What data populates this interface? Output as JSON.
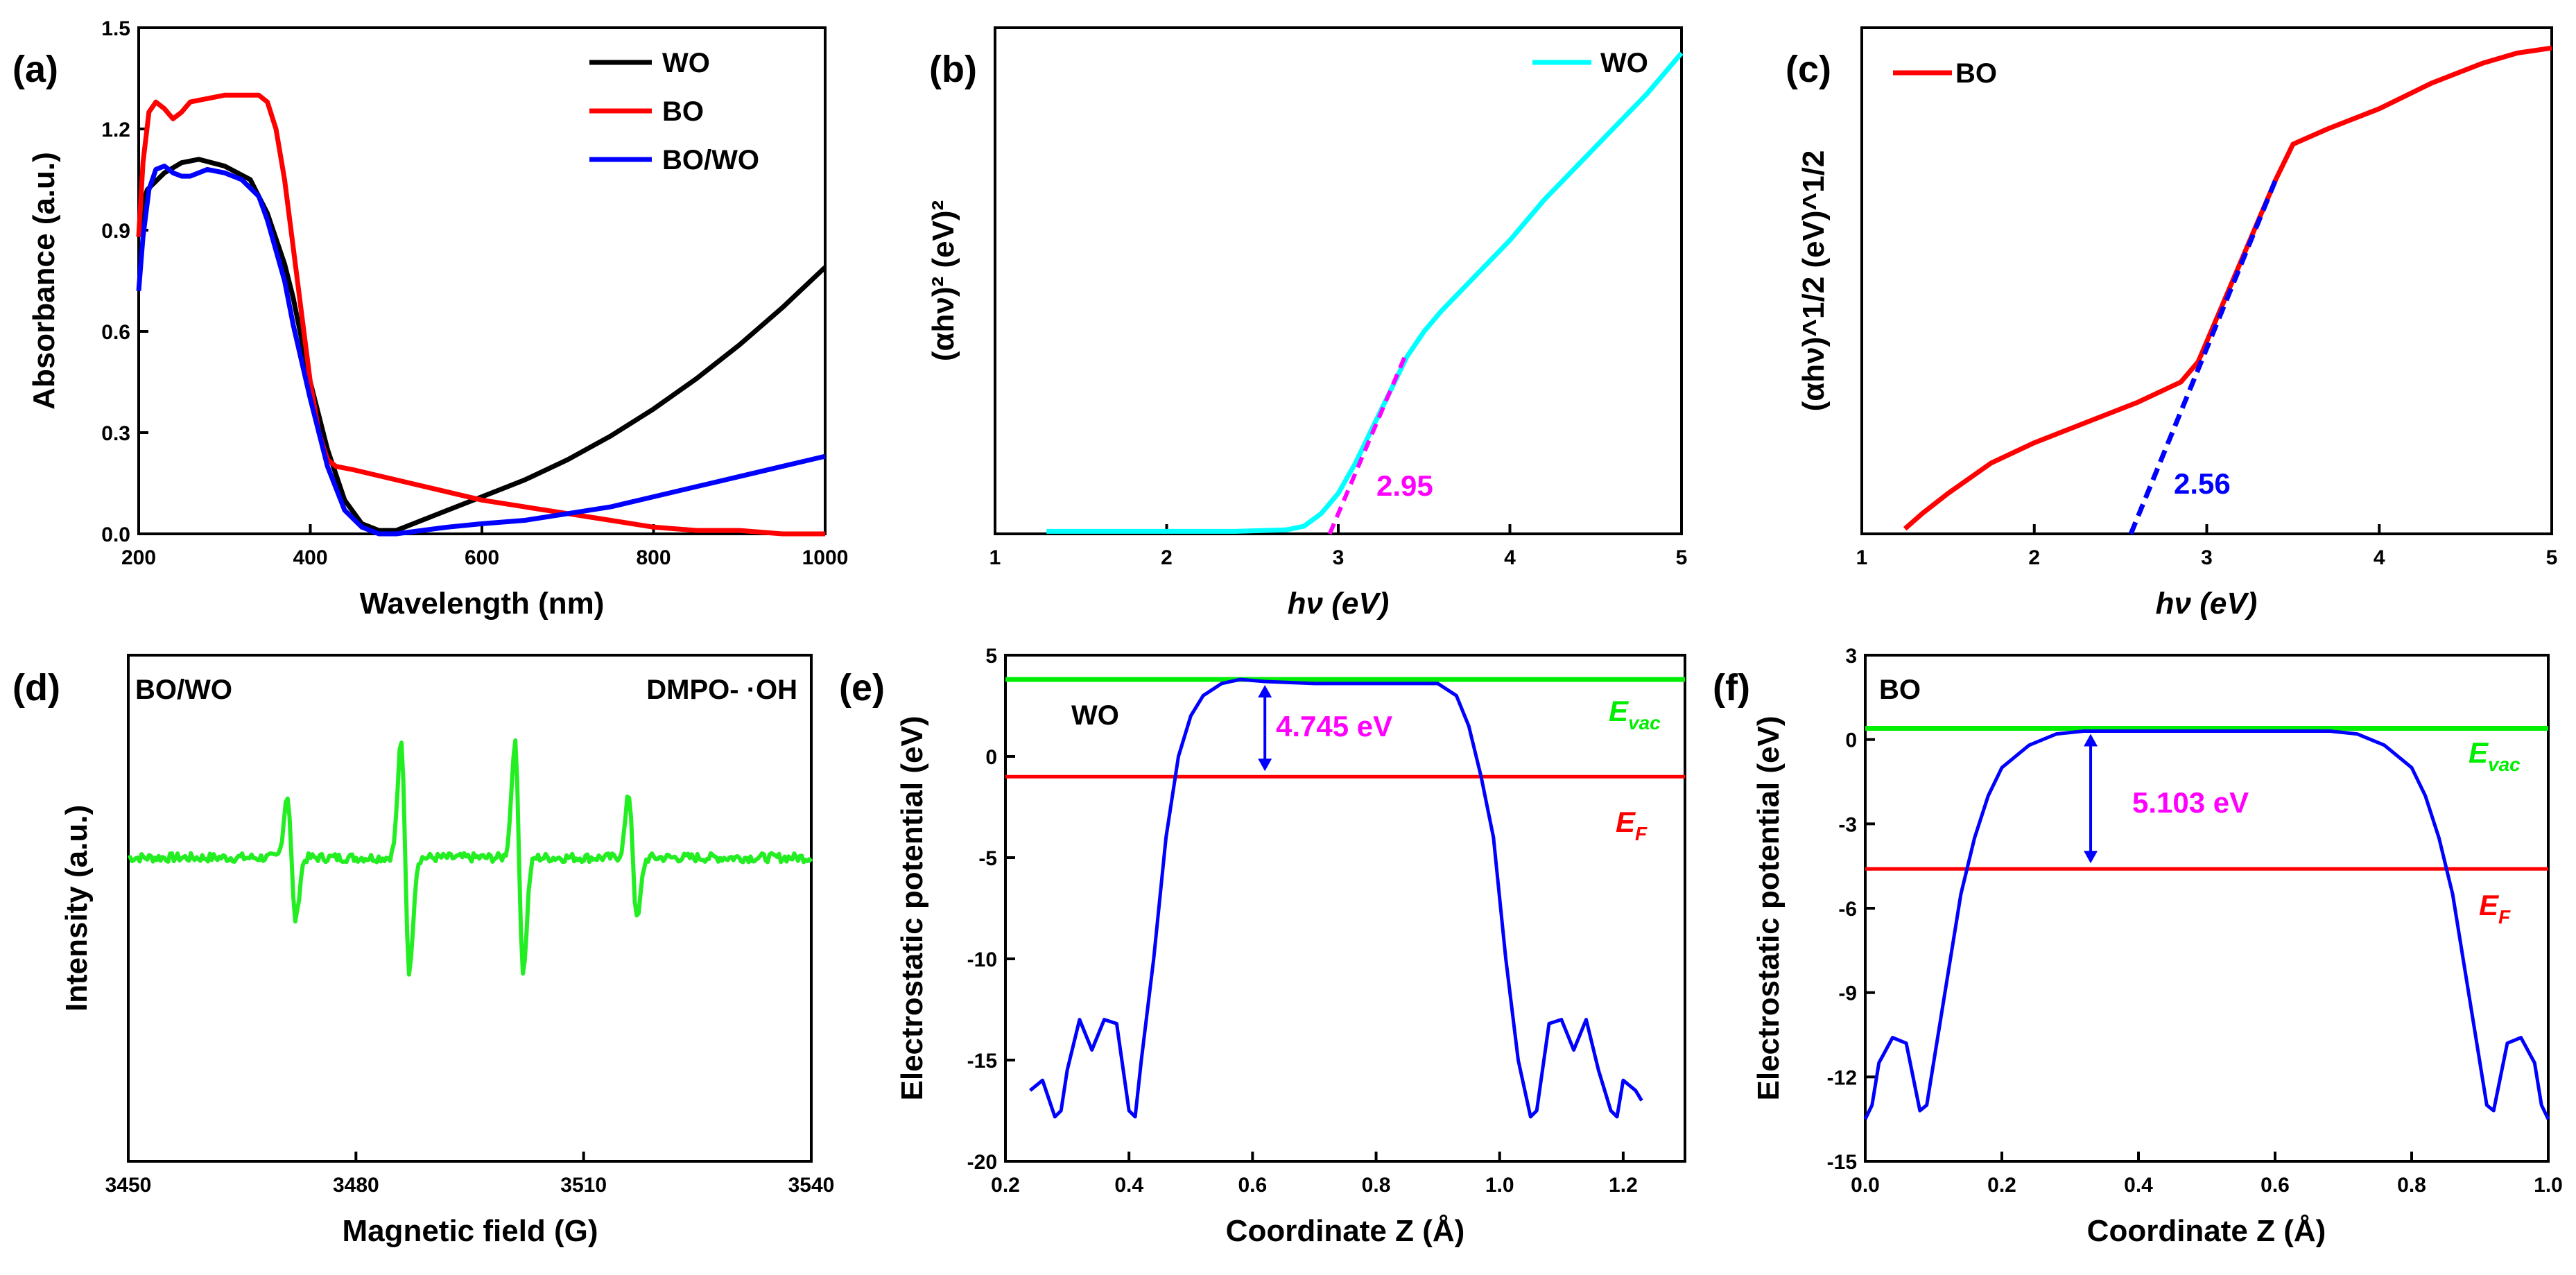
{
  "figure": "six-panel absorbance, Tauc, EPR and electrostatic potential figure",
  "chart_data": [
    {
      "panel": "(a)",
      "type": "line",
      "xlabel": "Wavelength (nm)",
      "ylabel": "Absorbance (a.u.)",
      "xlim": [
        200,
        1000
      ],
      "ylim": [
        0,
        1.5
      ],
      "xticks": [
        "200",
        "400",
        "600",
        "800",
        "1000"
      ],
      "yticks": [
        "0.0",
        "0.3",
        "0.6",
        "0.9",
        "1.2",
        "1.5"
      ],
      "legend": "top-right",
      "series": [
        {
          "name": "WO",
          "color": "#000000",
          "x": [
            200,
            205,
            210,
            230,
            250,
            270,
            300,
            330,
            350,
            370,
            380,
            400,
            420,
            440,
            460,
            480,
            500,
            530,
            560,
            600,
            650,
            700,
            750,
            800,
            850,
            900,
            950,
            1000
          ],
          "y": [
            0.88,
            0.98,
            1.02,
            1.07,
            1.1,
            1.11,
            1.09,
            1.05,
            0.95,
            0.8,
            0.7,
            0.45,
            0.25,
            0.1,
            0.03,
            0.01,
            0.01,
            0.04,
            0.07,
            0.11,
            0.16,
            0.22,
            0.29,
            0.37,
            0.46,
            0.56,
            0.67,
            0.79
          ]
        },
        {
          "name": "BO",
          "color": "#ff0000",
          "x": [
            200,
            205,
            212,
            220,
            230,
            240,
            250,
            260,
            280,
            300,
            320,
            340,
            350,
            360,
            370,
            380,
            390,
            400,
            410,
            420,
            430,
            450,
            500,
            550,
            600,
            650,
            700,
            750,
            800,
            850,
            900,
            950,
            1000
          ],
          "y": [
            0.88,
            1.1,
            1.25,
            1.28,
            1.26,
            1.23,
            1.25,
            1.28,
            1.29,
            1.3,
            1.3,
            1.3,
            1.28,
            1.2,
            1.05,
            0.85,
            0.65,
            0.45,
            0.3,
            0.22,
            0.2,
            0.19,
            0.16,
            0.13,
            0.1,
            0.08,
            0.06,
            0.04,
            0.02,
            0.01,
            0.01,
            0.0,
            0.0
          ]
        },
        {
          "name": "BO/WO",
          "color": "#0000ff",
          "x": [
            200,
            205,
            212,
            220,
            230,
            240,
            250,
            260,
            280,
            300,
            320,
            340,
            350,
            370,
            380,
            400,
            420,
            440,
            460,
            480,
            500,
            530,
            560,
            600,
            650,
            700,
            750,
            800,
            850,
            900,
            950,
            1000
          ],
          "y": [
            0.72,
            0.88,
            1.02,
            1.08,
            1.09,
            1.07,
            1.06,
            1.06,
            1.08,
            1.07,
            1.05,
            1.0,
            0.93,
            0.75,
            0.62,
            0.4,
            0.2,
            0.07,
            0.02,
            0.0,
            0.0,
            0.01,
            0.02,
            0.03,
            0.04,
            0.06,
            0.08,
            0.11,
            0.14,
            0.17,
            0.2,
            0.23
          ]
        }
      ]
    },
    {
      "panel": "(b)",
      "type": "line",
      "xlabel": "hν (eV)",
      "ylabel": "(αhν)² (eV)²",
      "xlim": [
        1,
        5
      ],
      "ylim": [
        0,
        1
      ],
      "xticks": [
        "1",
        "2",
        "3",
        "4",
        "5"
      ],
      "legend": "top-right",
      "series": [
        {
          "name": "WO",
          "color": "#00ffff",
          "x": [
            1.3,
            1.6,
            2.0,
            2.4,
            2.7,
            2.8,
            2.9,
            3.0,
            3.1,
            3.2,
            3.3,
            3.4,
            3.5,
            3.6,
            3.8,
            4.0,
            4.2,
            4.4,
            4.6,
            4.8,
            5.0
          ],
          "y": [
            0.005,
            0.005,
            0.005,
            0.005,
            0.008,
            0.015,
            0.04,
            0.08,
            0.14,
            0.21,
            0.28,
            0.35,
            0.4,
            0.44,
            0.51,
            0.58,
            0.66,
            0.73,
            0.8,
            0.87,
            0.95
          ]
        }
      ],
      "fit_line": {
        "x": [
          2.95,
          3.4
        ],
        "y": [
          0.0,
          0.36
        ],
        "color": "#ff00ff"
      },
      "annotation": "2.95"
    },
    {
      "panel": "(c)",
      "type": "line",
      "xlabel": "hν (eV)",
      "ylabel": "(αhν)^1/2 (eV)^1/2",
      "xlim": [
        1,
        5
      ],
      "ylim": [
        0,
        1
      ],
      "xticks": [
        "1",
        "2",
        "3",
        "4",
        "5"
      ],
      "legend": "top-left",
      "series": [
        {
          "name": "BO",
          "color": "#ff0000",
          "x": [
            1.25,
            1.35,
            1.5,
            1.75,
            2.0,
            2.3,
            2.6,
            2.85,
            2.95,
            3.1,
            3.25,
            3.4,
            3.5,
            3.7,
            4.0,
            4.3,
            4.6,
            4.8,
            5.0
          ],
          "y": [
            0.01,
            0.04,
            0.08,
            0.14,
            0.18,
            0.22,
            0.26,
            0.3,
            0.34,
            0.46,
            0.58,
            0.7,
            0.77,
            0.8,
            0.84,
            0.89,
            0.93,
            0.95,
            0.96
          ]
        }
      ],
      "fit_line": {
        "x": [
          2.56,
          3.4
        ],
        "y": [
          0.0,
          0.7
        ],
        "color": "#0000ff"
      },
      "annotation": "2.56"
    },
    {
      "panel": "(d)",
      "type": "line",
      "xlabel": "Magnetic field (G)",
      "ylabel": "Intensity (a.u.)",
      "xlim": [
        3450,
        3540
      ],
      "xticks": [
        "3450",
        "3480",
        "3510",
        "3540"
      ],
      "sample_label": "BO/WO",
      "series_label": "DMPO- ·OH",
      "series": [
        {
          "name": "DMPO- ·OH",
          "color": "#22ee22",
          "baseline": 0,
          "noise_amplitude": 0.06,
          "peaks": [
            {
              "center": 3471.5,
              "amplitude": 0.3
            },
            {
              "center": 3486.5,
              "amplitude": 0.55
            },
            {
              "center": 3501.5,
              "amplitude": 0.55
            },
            {
              "center": 3516.5,
              "amplitude": 0.3
            }
          ]
        }
      ]
    },
    {
      "panel": "(e)",
      "type": "line",
      "xlabel": "Coordinate Z (Å)",
      "ylabel": "Electrostatic potential (eV)",
      "xlim": [
        0.2,
        1.3
      ],
      "ylim": [
        -20,
        5
      ],
      "xticks": [
        "0.2",
        "0.4",
        "0.6",
        "0.8",
        "1.0",
        "1.2"
      ],
      "yticks": [
        "-20",
        "-15",
        "-10",
        "-5",
        "0",
        "5"
      ],
      "sample_label": "WO",
      "E_vac": 3.8,
      "E_F": -1.0,
      "E_vac_label": "E",
      "E_vac_sub": "vac",
      "E_F_label": "E",
      "E_F_sub": "F",
      "work_function_label": "4.745 eV",
      "curve_color": "#0000ff",
      "vac_color": "#00ee00",
      "fermi_color": "#ff0000",
      "series": [
        {
          "name": "potential",
          "x": [
            0.24,
            0.26,
            0.28,
            0.29,
            0.3,
            0.32,
            0.34,
            0.36,
            0.38,
            0.4,
            0.41,
            0.42,
            0.44,
            0.46,
            0.48,
            0.5,
            0.52,
            0.55,
            0.58,
            0.62,
            0.7,
            0.8,
            0.9,
            0.93,
            0.95,
            0.97,
            0.99,
            1.01,
            1.03,
            1.05,
            1.06,
            1.08,
            1.1,
            1.12,
            1.14,
            1.16,
            1.18,
            1.19,
            1.2,
            1.22,
            1.23
          ],
          "y": [
            -16.5,
            -16.0,
            -17.8,
            -17.5,
            -15.5,
            -13.0,
            -14.5,
            -13.0,
            -13.2,
            -17.5,
            -17.8,
            -15.0,
            -10.0,
            -4.0,
            0.0,
            2.0,
            3.0,
            3.6,
            3.8,
            3.7,
            3.6,
            3.6,
            3.6,
            3.0,
            1.5,
            -1.0,
            -4.0,
            -10.0,
            -15.0,
            -17.8,
            -17.5,
            -13.2,
            -13.0,
            -14.5,
            -13.0,
            -15.5,
            -17.5,
            -17.8,
            -16.0,
            -16.5,
            -17.0
          ]
        }
      ]
    },
    {
      "panel": "(f)",
      "type": "line",
      "xlabel": "Coordinate Z (Å)",
      "ylabel": "Electrostatic potential (eV)",
      "xlim": [
        0.0,
        1.0
      ],
      "ylim": [
        -15,
        3
      ],
      "xticks": [
        "0.0",
        "0.2",
        "0.4",
        "0.6",
        "0.8",
        "1.0"
      ],
      "yticks": [
        "-15",
        "-12",
        "-9",
        "-6",
        "-3",
        "0",
        "3"
      ],
      "sample_label": "BO",
      "E_vac": 0.4,
      "E_F": -4.6,
      "E_vac_label": "E",
      "E_vac_sub": "vac",
      "E_F_label": "E",
      "E_F_sub": "F",
      "work_function_label": "5.103 eV",
      "curve_color": "#0000ff",
      "vac_color": "#00ee00",
      "fermi_color": "#ff0000",
      "series": [
        {
          "name": "potential",
          "x": [
            0.0,
            0.01,
            0.02,
            0.04,
            0.06,
            0.08,
            0.09,
            0.1,
            0.12,
            0.14,
            0.16,
            0.18,
            0.2,
            0.24,
            0.28,
            0.32,
            0.36,
            0.4,
            0.5,
            0.6,
            0.64,
            0.68,
            0.72,
            0.76,
            0.8,
            0.82,
            0.84,
            0.86,
            0.88,
            0.9,
            0.91,
            0.92,
            0.94,
            0.96,
            0.98,
            0.99,
            1.0
          ],
          "y": [
            -13.5,
            -13.0,
            -11.5,
            -10.6,
            -10.8,
            -13.2,
            -13.0,
            -11.5,
            -8.5,
            -5.5,
            -3.5,
            -2.0,
            -1.0,
            -0.2,
            0.2,
            0.3,
            0.3,
            0.3,
            0.3,
            0.3,
            0.3,
            0.3,
            0.2,
            -0.2,
            -1.0,
            -2.0,
            -3.5,
            -5.5,
            -8.5,
            -11.5,
            -13.0,
            -13.2,
            -10.8,
            -10.6,
            -11.5,
            -13.0,
            -13.5
          ]
        }
      ]
    }
  ]
}
